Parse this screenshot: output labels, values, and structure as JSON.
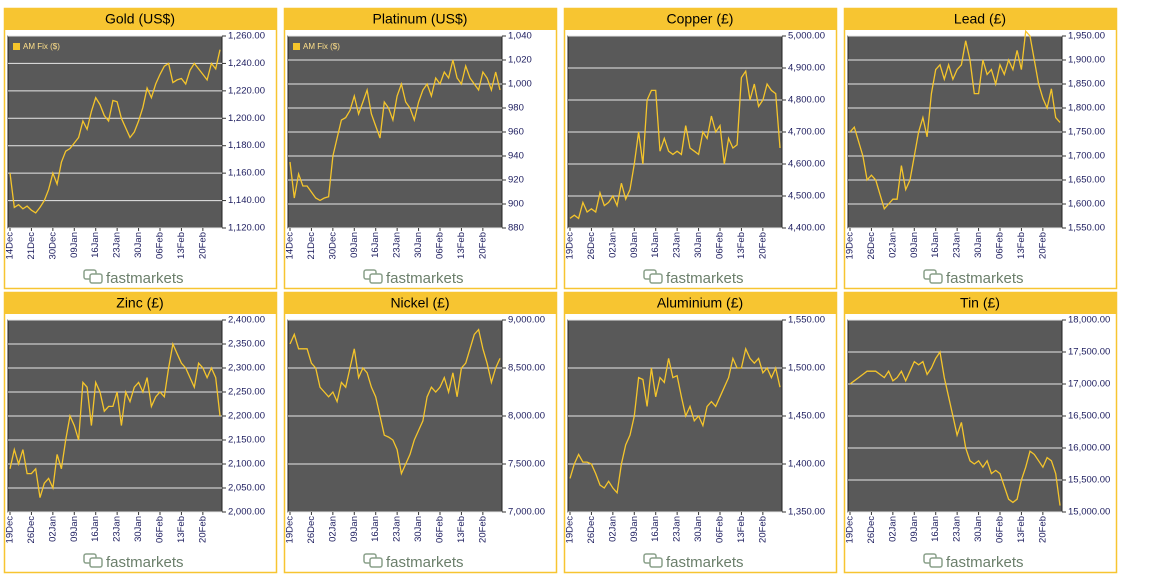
{
  "brand": "fastmarkets",
  "chart_data": [
    {
      "type": "line",
      "title": "Gold (US$)",
      "legend": "upper left",
      "grid": true,
      "categories": [
        "14Dec",
        null,
        null,
        null,
        null,
        "21Dec",
        null,
        null,
        null,
        null,
        "30Dec",
        null,
        null,
        null,
        null,
        "09Jan",
        null,
        null,
        null,
        null,
        "16Jan",
        null,
        null,
        null,
        null,
        "23Jan",
        null,
        null,
        null,
        null,
        "30Jan",
        null,
        null,
        null,
        null,
        "06Feb",
        null,
        null,
        null,
        null,
        "13Feb",
        null,
        null,
        null,
        null,
        "20Feb",
        null,
        null,
        null,
        null
      ],
      "series": [
        {
          "name": "AM Fix ($)",
          "color": "#f5c52b",
          "values": [
            1160,
            1135,
            1137,
            1134,
            1136,
            1133,
            1131,
            1135,
            1140,
            1148,
            1160,
            1152,
            1168,
            1176,
            1178,
            1182,
            1186,
            1198,
            1192,
            1205,
            1215,
            1210,
            1202,
            1198,
            1213,
            1212,
            1200,
            1193,
            1186,
            1190,
            1198,
            1208,
            1222,
            1215,
            1225,
            1232,
            1238,
            1240,
            1226,
            1228,
            1229,
            1225,
            1235,
            1240,
            1236,
            1232,
            1228,
            1240,
            1236,
            1250
          ]
        }
      ],
      "ylim": [
        1120,
        1260
      ],
      "yticks": [
        {
          "value": 1120,
          "label": "1,120.00"
        },
        {
          "value": 1140,
          "label": "1,140.00"
        },
        {
          "value": 1160,
          "label": "1,160.00"
        },
        {
          "value": 1180,
          "label": "1,180.00"
        },
        {
          "value": 1200,
          "label": "1,200.00"
        },
        {
          "value": 1220,
          "label": "1,220.00"
        },
        {
          "value": 1240,
          "label": "1,240.00"
        },
        {
          "value": 1260,
          "label": "1,260.00"
        }
      ]
    },
    {
      "type": "line",
      "title": "Platinum (US$)",
      "legend": "upper left",
      "grid": true,
      "categories": [
        "14Dec",
        null,
        null,
        null,
        null,
        "21Dec",
        null,
        null,
        null,
        null,
        "30Dec",
        null,
        null,
        null,
        null,
        "09Jan",
        null,
        null,
        null,
        null,
        "16Jan",
        null,
        null,
        null,
        null,
        "23Jan",
        null,
        null,
        null,
        null,
        "30Jan",
        null,
        null,
        null,
        null,
        "06Feb",
        null,
        null,
        null,
        null,
        "13Feb",
        null,
        null,
        null,
        null,
        "20Feb",
        null,
        null,
        null,
        null
      ],
      "series": [
        {
          "name": "AM Fix ($)",
          "color": "#f5c52b",
          "values": [
            935,
            905,
            925,
            915,
            915,
            910,
            905,
            903,
            905,
            906,
            940,
            955,
            970,
            972,
            978,
            990,
            975,
            985,
            995,
            975,
            965,
            955,
            985,
            980,
            970,
            990,
            1000,
            985,
            980,
            970,
            985,
            995,
            1000,
            990,
            1005,
            1000,
            1010,
            1005,
            1020,
            1005,
            1000,
            1015,
            1005,
            1000,
            995,
            1010,
            1005,
            995,
            1010,
            995
          ]
        }
      ],
      "ylim": [
        880,
        1040
      ],
      "yticks": [
        880,
        900,
        920,
        940,
        960,
        980,
        {
          "value": 1000,
          "label": "1,000"
        },
        {
          "value": 1020,
          "label": "1,020"
        },
        {
          "value": 1040,
          "label": "1,040"
        }
      ]
    },
    {
      "type": "line",
      "title": "Copper (£)",
      "grid": true,
      "categories": [
        "19Dec",
        null,
        null,
        null,
        null,
        "26Dec",
        null,
        null,
        null,
        null,
        "02Jan",
        null,
        null,
        null,
        null,
        "09Jan",
        null,
        null,
        null,
        null,
        "16Jan",
        null,
        null,
        null,
        null,
        "23Jan",
        null,
        null,
        null,
        null,
        "30Jan",
        null,
        null,
        null,
        null,
        "06Feb",
        null,
        null,
        null,
        null,
        "13Feb",
        null,
        null,
        null,
        null,
        "20Feb",
        null,
        null,
        null,
        null
      ],
      "series": [
        {
          "color": "#f5c52b",
          "values": [
            4430,
            4440,
            4430,
            4480,
            4450,
            4460,
            4450,
            4510,
            4470,
            4480,
            4500,
            4470,
            4540,
            4490,
            4520,
            4600,
            4700,
            4600,
            4800,
            4830,
            4830,
            4640,
            4680,
            4640,
            4630,
            4640,
            4630,
            4720,
            4650,
            4640,
            4630,
            4700,
            4680,
            4750,
            4700,
            4720,
            4600,
            4680,
            4650,
            4660,
            4870,
            4890,
            4800,
            4850,
            4780,
            4800,
            4850,
            4830,
            4820,
            4650
          ]
        }
      ],
      "ylim": [
        4400,
        5000
      ],
      "yticks": [
        {
          "value": 4400,
          "label": "4,400.00"
        },
        {
          "value": 4500,
          "label": "4,500.00"
        },
        {
          "value": 4600,
          "label": "4,600.00"
        },
        {
          "value": 4700,
          "label": "4,700.00"
        },
        {
          "value": 4800,
          "label": "4,800.00"
        },
        {
          "value": 4900,
          "label": "4,900.00"
        },
        {
          "value": 5000,
          "label": "5,000.00"
        }
      ]
    },
    {
      "type": "line",
      "title": "Lead (£)",
      "grid": true,
      "categories": [
        "19Dec",
        null,
        null,
        null,
        null,
        "26Dec",
        null,
        null,
        null,
        null,
        "02Jan",
        null,
        null,
        null,
        null,
        "09Jan",
        null,
        null,
        null,
        null,
        "16Jan",
        null,
        null,
        null,
        null,
        "23Jan",
        null,
        null,
        null,
        null,
        "30Jan",
        null,
        null,
        null,
        null,
        "06Feb",
        null,
        null,
        null,
        null,
        "13Feb",
        null,
        null,
        null,
        null,
        "20Feb",
        null,
        null,
        null,
        null
      ],
      "series": [
        {
          "color": "#f5c52b",
          "values": [
            1750,
            1760,
            1730,
            1700,
            1650,
            1660,
            1650,
            1620,
            1590,
            1600,
            1610,
            1610,
            1680,
            1630,
            1650,
            1700,
            1750,
            1780,
            1740,
            1830,
            1880,
            1890,
            1860,
            1890,
            1860,
            1880,
            1890,
            1940,
            1900,
            1830,
            1830,
            1900,
            1870,
            1880,
            1850,
            1890,
            1870,
            1900,
            1880,
            1920,
            1880,
            1960,
            1950,
            1900,
            1850,
            1820,
            1800,
            1840,
            1780,
            1770
          ]
        }
      ],
      "ylim": [
        1550,
        1950
      ],
      "yticks": [
        {
          "value": 1550,
          "label": "1,550.00"
        },
        {
          "value": 1600,
          "label": "1,600.00"
        },
        {
          "value": 1650,
          "label": "1,650.00"
        },
        {
          "value": 1700,
          "label": "1,700.00"
        },
        {
          "value": 1750,
          "label": "1,750.00"
        },
        {
          "value": 1800,
          "label": "1,800.00"
        },
        {
          "value": 1850,
          "label": "1,850.00"
        },
        {
          "value": 1900,
          "label": "1,900.00"
        },
        {
          "value": 1950,
          "label": "1,950.00"
        }
      ]
    },
    {
      "type": "line",
      "title": "Zinc (£)",
      "grid": true,
      "categories": [
        "19Dec",
        null,
        null,
        null,
        null,
        "26Dec",
        null,
        null,
        null,
        null,
        "02Jan",
        null,
        null,
        null,
        null,
        "09Jan",
        null,
        null,
        null,
        null,
        "16Jan",
        null,
        null,
        null,
        null,
        "23Jan",
        null,
        null,
        null,
        null,
        "30Jan",
        null,
        null,
        null,
        null,
        "06Feb",
        null,
        null,
        null,
        null,
        "13Feb",
        null,
        null,
        null,
        null,
        "20Feb",
        null,
        null,
        null,
        null
      ],
      "series": [
        {
          "color": "#f5c52b",
          "values": [
            2090,
            2130,
            2100,
            2130,
            2080,
            2080,
            2090,
            2030,
            2060,
            2070,
            2050,
            2120,
            2090,
            2150,
            2200,
            2180,
            2150,
            2270,
            2260,
            2180,
            2270,
            2250,
            2210,
            2220,
            2220,
            2250,
            2180,
            2250,
            2230,
            2260,
            2270,
            2250,
            2280,
            2220,
            2240,
            2250,
            2240,
            2300,
            2350,
            2330,
            2310,
            2300,
            2280,
            2260,
            2310,
            2300,
            2280,
            2300,
            2280,
            2200
          ]
        }
      ],
      "ylim": [
        2000,
        2400
      ],
      "yticks": [
        {
          "value": 2000,
          "label": "2,000.00"
        },
        {
          "value": 2050,
          "label": "2,050.00"
        },
        {
          "value": 2100,
          "label": "2,100.00"
        },
        {
          "value": 2150,
          "label": "2,150.00"
        },
        {
          "value": 2200,
          "label": "2,200.00"
        },
        {
          "value": 2250,
          "label": "2,250.00"
        },
        {
          "value": 2300,
          "label": "2,300.00"
        },
        {
          "value": 2350,
          "label": "2,350.00"
        },
        {
          "value": 2400,
          "label": "2,400.00"
        }
      ]
    },
    {
      "type": "line",
      "title": "Nickel (£)",
      "grid": true,
      "categories": [
        "19Dec",
        null,
        null,
        null,
        null,
        "26Dec",
        null,
        null,
        null,
        null,
        "02Jan",
        null,
        null,
        null,
        null,
        "09Jan",
        null,
        null,
        null,
        null,
        "16Jan",
        null,
        null,
        null,
        null,
        "23Jan",
        null,
        null,
        null,
        null,
        "30Jan",
        null,
        null,
        null,
        null,
        "06Feb",
        null,
        null,
        null,
        null,
        "13Feb",
        null,
        null,
        null,
        null,
        "20Feb",
        null,
        null,
        null,
        null
      ],
      "series": [
        {
          "color": "#f5c52b",
          "values": [
            8750,
            8850,
            8700,
            8700,
            8700,
            8550,
            8500,
            8300,
            8250,
            8200,
            8250,
            8150,
            8350,
            8300,
            8500,
            8700,
            8400,
            8500,
            8450,
            8300,
            8200,
            8000,
            7800,
            7780,
            7750,
            7650,
            7400,
            7500,
            7600,
            7750,
            7850,
            7950,
            8200,
            8300,
            8250,
            8300,
            8400,
            8250,
            8450,
            8200,
            8500,
            8550,
            8700,
            8850,
            8900,
            8700,
            8550,
            8350,
            8500,
            8600
          ]
        }
      ],
      "ylim": [
        7000,
        9000
      ],
      "yticks": [
        {
          "value": 7000,
          "label": "7,000.00"
        },
        {
          "value": 7500,
          "label": "7,500.00"
        },
        {
          "value": 8000,
          "label": "8,000.00"
        },
        {
          "value": 8500,
          "label": "8,500.00"
        },
        {
          "value": 9000,
          "label": "9,000.00"
        }
      ]
    },
    {
      "type": "line",
      "title": "Aluminium (£)",
      "grid": true,
      "categories": [
        "19Dec",
        null,
        null,
        null,
        null,
        "26Dec",
        null,
        null,
        null,
        null,
        "02Jan",
        null,
        null,
        null,
        null,
        "09Jan",
        null,
        null,
        null,
        null,
        "16Jan",
        null,
        null,
        null,
        null,
        "23Jan",
        null,
        null,
        null,
        null,
        "30Jan",
        null,
        null,
        null,
        null,
        "06Feb",
        null,
        null,
        null,
        null,
        "13Feb",
        null,
        null,
        null,
        null,
        "20Feb",
        null,
        null,
        null,
        null
      ],
      "series": [
        {
          "color": "#f5c52b",
          "values": [
            1385,
            1400,
            1410,
            1402,
            1402,
            1400,
            1390,
            1378,
            1375,
            1382,
            1375,
            1370,
            1400,
            1420,
            1430,
            1450,
            1490,
            1488,
            1460,
            1500,
            1470,
            1490,
            1485,
            1510,
            1490,
            1492,
            1470,
            1450,
            1460,
            1445,
            1450,
            1440,
            1460,
            1465,
            1460,
            1470,
            1480,
            1490,
            1510,
            1500,
            1500,
            1520,
            1510,
            1505,
            1510,
            1495,
            1500,
            1490,
            1500,
            1480
          ]
        }
      ],
      "ylim": [
        1350,
        1550
      ],
      "yticks": [
        {
          "value": 1350,
          "label": "1,350.00"
        },
        {
          "value": 1400,
          "label": "1,400.00"
        },
        {
          "value": 1450,
          "label": "1,450.00"
        },
        {
          "value": 1500,
          "label": "1,500.00"
        },
        {
          "value": 1550,
          "label": "1,550.00"
        }
      ]
    },
    {
      "type": "line",
      "title": "Tin (£)",
      "grid": true,
      "categories": [
        "19Dec",
        null,
        null,
        null,
        null,
        "26Dec",
        null,
        null,
        null,
        null,
        "02Jan",
        null,
        null,
        null,
        null,
        "09Jan",
        null,
        null,
        null,
        null,
        "16Jan",
        null,
        null,
        null,
        null,
        "23Jan",
        null,
        null,
        null,
        null,
        "30Jan",
        null,
        null,
        null,
        null,
        "06Feb",
        null,
        null,
        null,
        null,
        "13Feb",
        null,
        null,
        null,
        null,
        "20Feb",
        null,
        null,
        null,
        null
      ],
      "series": [
        {
          "color": "#f5c52b",
          "values": [
            17000,
            17050,
            17100,
            17150,
            17200,
            17200,
            17200,
            17150,
            17100,
            17200,
            17050,
            17100,
            17200,
            17050,
            17200,
            17350,
            17300,
            17350,
            17150,
            17250,
            17400,
            17500,
            17100,
            16800,
            16500,
            16200,
            16400,
            16000,
            15800,
            15750,
            15800,
            15700,
            15800,
            15600,
            15650,
            15600,
            15400,
            15200,
            15150,
            15200,
            15500,
            15700,
            15950,
            15900,
            15800,
            15700,
            15850,
            15800,
            15600,
            15100
          ]
        }
      ],
      "ylim": [
        15000,
        18000
      ],
      "yticks": [
        {
          "value": 15000,
          "label": "15,000.00"
        },
        {
          "value": 15500,
          "label": "15,500.00"
        },
        {
          "value": 16000,
          "label": "16,000.00"
        },
        {
          "value": 16500,
          "label": "16,500.00"
        },
        {
          "value": 17000,
          "label": "17,000.00"
        },
        {
          "value": 17500,
          "label": "17,500.00"
        },
        {
          "value": 18000,
          "label": "18,000.00"
        }
      ]
    }
  ]
}
